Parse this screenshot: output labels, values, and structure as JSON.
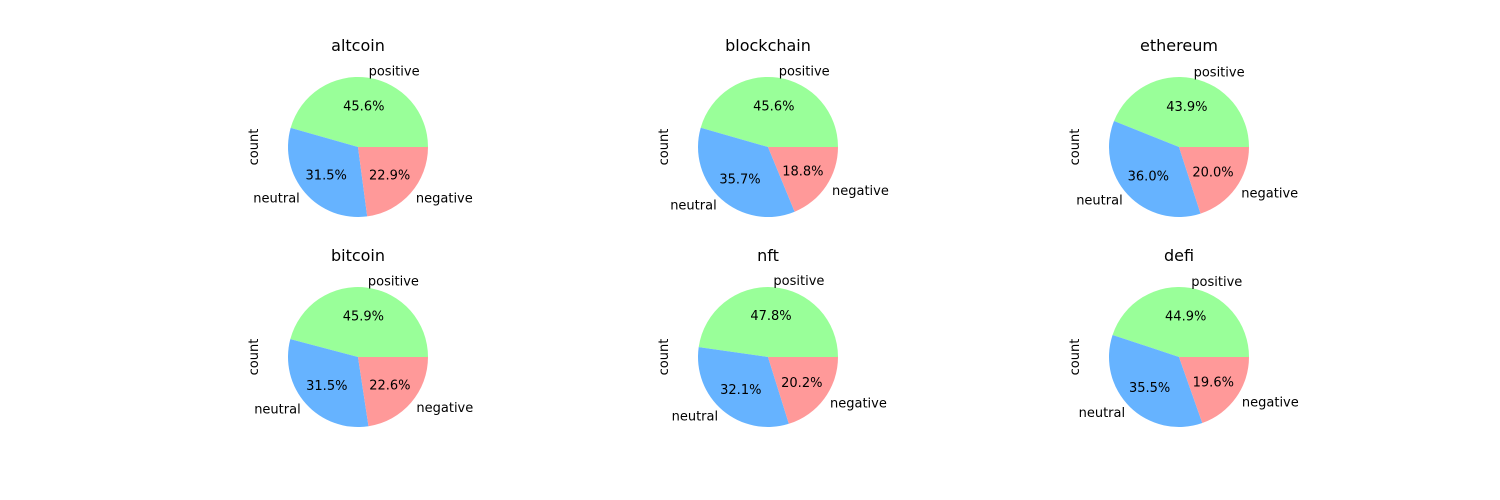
{
  "colors": {
    "positive": "#99ff99",
    "neutral": "#66b3ff",
    "negative": "#ff9999"
  },
  "chart_data": [
    {
      "type": "pie",
      "title": "altcoin",
      "ylabel": "count",
      "labels": [
        "positive",
        "neutral",
        "negative"
      ],
      "values": [
        45.6,
        31.5,
        22.9
      ],
      "value_labels": [
        "45.6%",
        "31.5%",
        "22.9%"
      ]
    },
    {
      "type": "pie",
      "title": "blockchain",
      "ylabel": "count",
      "labels": [
        "positive",
        "neutral",
        "negative"
      ],
      "values": [
        45.6,
        35.7,
        18.8
      ],
      "value_labels": [
        "45.6%",
        "35.7%",
        "18.8%"
      ]
    },
    {
      "type": "pie",
      "title": "ethereum",
      "ylabel": "count",
      "labels": [
        "positive",
        "neutral",
        "negative"
      ],
      "values": [
        43.9,
        36.0,
        20.0
      ],
      "value_labels": [
        "43.9%",
        "36.0%",
        "20.0%"
      ]
    },
    {
      "type": "pie",
      "title": "bitcoin",
      "ylabel": "count",
      "labels": [
        "positive",
        "neutral",
        "negative"
      ],
      "values": [
        45.9,
        31.5,
        22.6
      ],
      "value_labels": [
        "45.9%",
        "31.5%",
        "22.6%"
      ]
    },
    {
      "type": "pie",
      "title": "nft",
      "ylabel": "count",
      "labels": [
        "positive",
        "neutral",
        "negative"
      ],
      "values": [
        47.8,
        32.1,
        20.2
      ],
      "value_labels": [
        "47.8%",
        "32.1%",
        "20.2%"
      ]
    },
    {
      "type": "pie",
      "title": "defi",
      "ylabel": "count",
      "labels": [
        "positive",
        "neutral",
        "negative"
      ],
      "values": [
        44.9,
        35.5,
        19.6
      ],
      "value_labels": [
        "44.9%",
        "35.5%",
        "19.6%"
      ]
    }
  ]
}
